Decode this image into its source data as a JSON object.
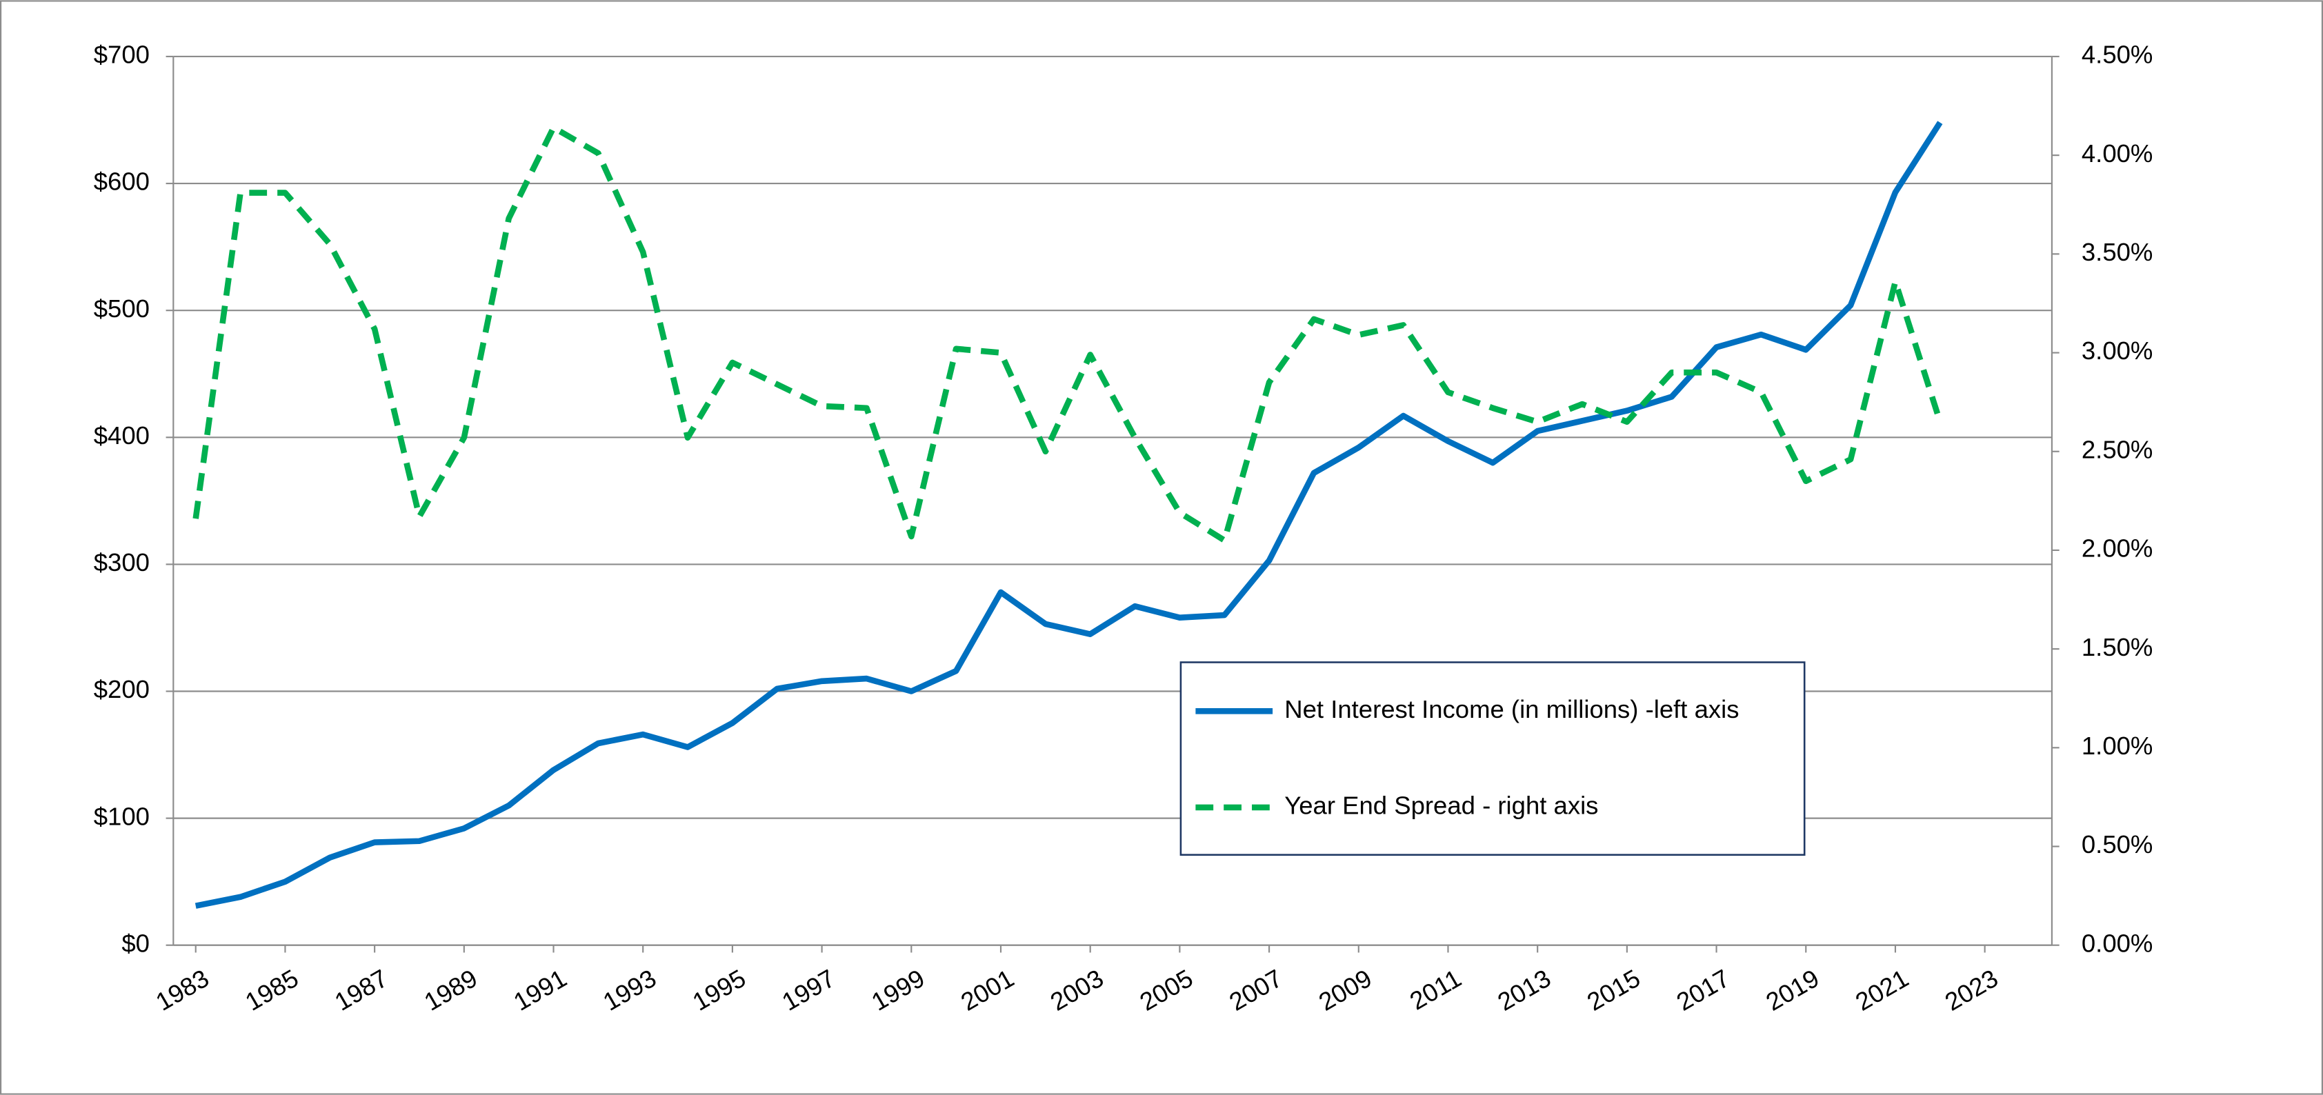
{
  "chart_data": {
    "type": "line",
    "x": [
      1983,
      1984,
      1985,
      1986,
      1987,
      1988,
      1989,
      1990,
      1991,
      1992,
      1993,
      1994,
      1995,
      1996,
      1997,
      1998,
      1999,
      2000,
      2001,
      2002,
      2003,
      2004,
      2005,
      2006,
      2007,
      2008,
      2009,
      2010,
      2011,
      2012,
      2013,
      2014,
      2015,
      2016,
      2017,
      2018,
      2019,
      2020,
      2021,
      2022
    ],
    "series": [
      {
        "name": "Net Interest Income (in millions) -left axis",
        "color": "#0070c0",
        "style": "solid",
        "values": [
          31,
          38,
          50,
          69,
          81,
          82,
          92,
          110,
          138,
          159,
          166,
          156,
          175,
          202,
          208,
          210,
          200,
          216,
          278,
          253,
          245,
          267,
          258,
          260,
          303,
          372,
          392,
          417,
          397,
          380,
          405,
          413,
          421,
          432,
          471,
          481,
          469,
          504,
          593,
          648
        ]
      },
      {
        "name": "Year End Spread - right axis",
        "color": "#00b050",
        "style": "dashed",
        "axis": "y2",
        "values": [
          2.16,
          3.81,
          3.81,
          3.55,
          3.12,
          2.17,
          2.57,
          3.68,
          4.14,
          4.01,
          3.51,
          2.57,
          2.95,
          2.84,
          2.73,
          2.72,
          2.07,
          3.02,
          3.0,
          2.5,
          2.99,
          2.57,
          2.19,
          2.05,
          2.85,
          3.17,
          3.09,
          3.14,
          2.8,
          2.72,
          2.65,
          2.74,
          2.65,
          2.9,
          2.9,
          2.8,
          2.35,
          2.46,
          3.36,
          2.65
        ]
      }
    ],
    "xlim": [
      1982.5,
      2024.5
    ],
    "xticks": [
      1983,
      1985,
      1987,
      1989,
      1991,
      1993,
      1995,
      1997,
      1999,
      2001,
      2003,
      2005,
      2007,
      2009,
      2011,
      2013,
      2015,
      2017,
      2019,
      2021,
      2023
    ],
    "ylim": [
      0,
      700
    ],
    "yticks": [
      {
        "value": 0,
        "label": "$0"
      },
      {
        "value": 100,
        "label": "$100"
      },
      {
        "value": 200,
        "label": "$200"
      },
      {
        "value": 300,
        "label": "$300"
      },
      {
        "value": 400,
        "label": "$400"
      },
      {
        "value": 500,
        "label": "$500"
      },
      {
        "value": 600,
        "label": "$600"
      },
      {
        "value": 700,
        "label": "$700"
      }
    ],
    "y2lim": [
      0,
      4.5
    ],
    "y2ticks": [
      {
        "value": 0,
        "label": "0.00%"
      },
      {
        "value": 0.5,
        "label": "0.50%"
      },
      {
        "value": 1,
        "label": "1.00%"
      },
      {
        "value": 1.5,
        "label": "1.50%"
      },
      {
        "value": 2,
        "label": "2.00%"
      },
      {
        "value": 2.5,
        "label": "2.50%"
      },
      {
        "value": 3,
        "label": "3.00%"
      },
      {
        "value": 3.5,
        "label": "3.50%"
      },
      {
        "value": 4,
        "label": "4.00%"
      },
      {
        "value": 4.5,
        "label": "4.50%"
      }
    ],
    "grid": true
  }
}
